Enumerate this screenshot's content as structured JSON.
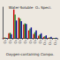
{
  "chart_data": {
    "type": "bar",
    "title": "Water-Soluble  Oₓ Speci.",
    "xlabel": "Oxygen-containing Compo.",
    "categories": [
      "O₂",
      "O₃",
      "O₄",
      "O₅",
      "O₆",
      "O₇",
      "O₈",
      "O₉",
      "O₁₀",
      "O₁₁",
      "O₁₂"
    ],
    "series": [
      {
        "color": "#cc0000",
        "values": [
          0.03,
          0.18,
          1.0,
          0.72,
          0.48,
          0.28,
          0.16,
          0.1,
          0.06,
          0.03,
          0.01
        ]
      },
      {
        "color": "#228B22",
        "values": [
          0.04,
          0.2,
          0.82,
          0.68,
          0.52,
          0.34,
          0.22,
          0.14,
          0.08,
          0.04,
          0.02
        ]
      },
      {
        "color": "#00008B",
        "values": [
          0.02,
          0.15,
          0.62,
          0.6,
          0.5,
          0.38,
          0.28,
          0.18,
          0.11,
          0.06,
          0.03
        ]
      }
    ],
    "ylim": [
      0,
      1.08
    ],
    "grid": false,
    "tick_labels": "x"
  }
}
